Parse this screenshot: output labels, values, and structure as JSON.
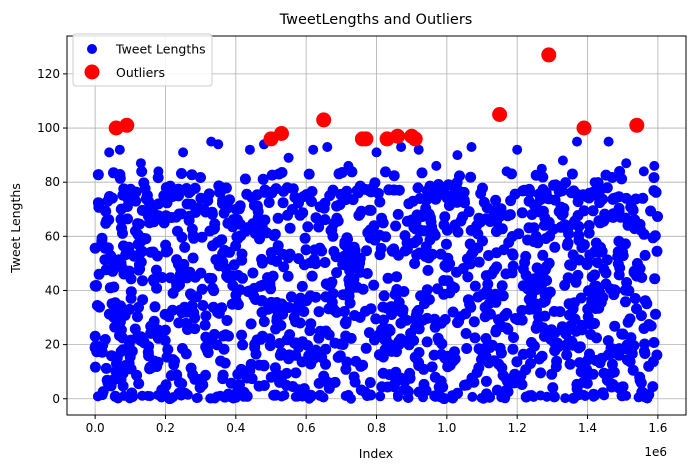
{
  "chart_data": {
    "type": "scatter",
    "title": "TweetLengths and Outliers",
    "xlabel": "Index",
    "ylabel": "Tweet Lengths",
    "x_offset_label": "1e6",
    "xlim": [
      -0.08,
      1.68
    ],
    "ylim": [
      -6,
      134
    ],
    "x_ticks": [
      0.0,
      0.2,
      0.4,
      0.6,
      0.8,
      1.0,
      1.2,
      1.4,
      1.6
    ],
    "x_tick_labels": [
      "0.0",
      "0.2",
      "0.4",
      "0.6",
      "0.8",
      "1.0",
      "1.2",
      "1.4",
      "1.6"
    ],
    "y_ticks": [
      0,
      20,
      40,
      60,
      80,
      100,
      120
    ],
    "y_tick_labels": [
      "0",
      "20",
      "40",
      "60",
      "80",
      "100",
      "120"
    ],
    "grid": true,
    "legend_position": "top-left",
    "legend": [
      {
        "label": "Tweet Lengths",
        "color": "#0000ff"
      },
      {
        "label": "Outliers",
        "color": "#ff0000"
      }
    ],
    "series": [
      {
        "name": "Tweet Lengths",
        "color": "#0000ff",
        "value_range": [
          0,
          95
        ],
        "x_range": [
          0.0,
          1.6
        ],
        "sample_points": [
          [
            0.01,
            83
          ],
          [
            0.04,
            91
          ],
          [
            0.07,
            92
          ],
          [
            0.13,
            87
          ],
          [
            0.18,
            84
          ],
          [
            0.25,
            91
          ],
          [
            0.33,
            95
          ],
          [
            0.35,
            94
          ],
          [
            0.44,
            92
          ],
          [
            0.48,
            94
          ],
          [
            0.55,
            89
          ],
          [
            0.62,
            92
          ],
          [
            0.66,
            93
          ],
          [
            0.72,
            86
          ],
          [
            0.8,
            91
          ],
          [
            0.87,
            93
          ],
          [
            0.92,
            92
          ],
          [
            0.97,
            86
          ],
          [
            1.03,
            90
          ],
          [
            1.07,
            93
          ],
          [
            1.17,
            84
          ],
          [
            1.2,
            92
          ],
          [
            1.27,
            85
          ],
          [
            1.33,
            88
          ],
          [
            1.37,
            95
          ],
          [
            1.42,
            80
          ],
          [
            1.46,
            95
          ],
          [
            1.51,
            87
          ],
          [
            1.56,
            84
          ],
          [
            1.59,
            86
          ]
        ]
      },
      {
        "name": "Outliers",
        "color": "#ff0000",
        "points": [
          [
            0.06,
            100
          ],
          [
            0.09,
            101
          ],
          [
            0.5,
            96
          ],
          [
            0.53,
            98
          ],
          [
            0.65,
            103
          ],
          [
            0.76,
            96
          ],
          [
            0.77,
            96
          ],
          [
            0.83,
            96
          ],
          [
            0.86,
            97
          ],
          [
            0.9,
            97
          ],
          [
            0.91,
            96
          ],
          [
            1.15,
            105
          ],
          [
            1.29,
            127
          ],
          [
            1.39,
            100
          ],
          [
            1.54,
            101
          ]
        ]
      }
    ]
  }
}
